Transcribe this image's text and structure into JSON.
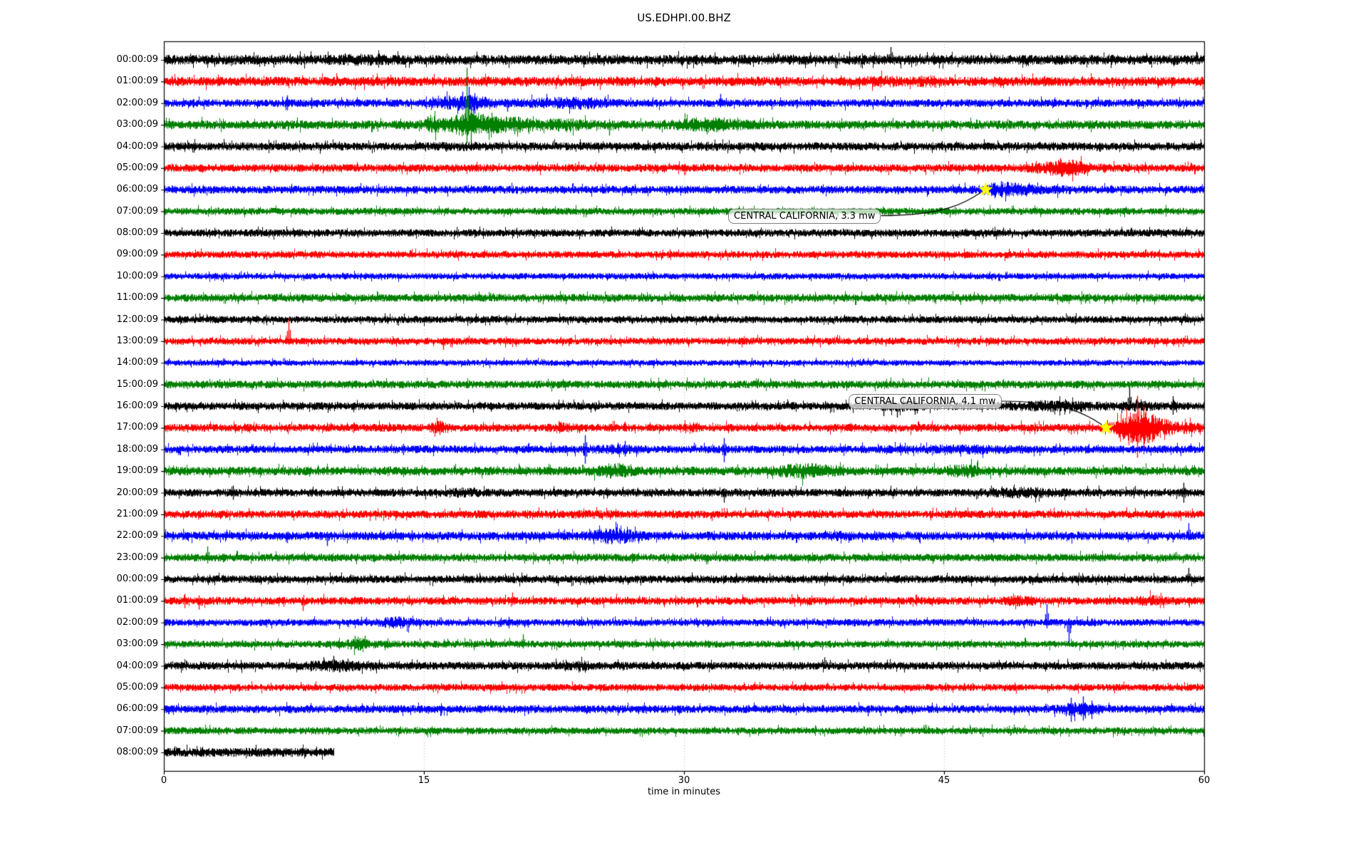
{
  "chart_data": {
    "type": "seismogram-dayplot",
    "title": "US.EDHPI.00.BHZ",
    "xlabel": "time in minutes",
    "x_ticks": [
      "0",
      "15",
      "30",
      "45",
      "60"
    ],
    "x_tick_values": [
      0,
      15,
      30,
      45,
      60
    ],
    "x_range_minutes": [
      0,
      60
    ],
    "minutes_per_row": 60,
    "grid": "vertical-dotted",
    "gridline_color": "#b4b4b4",
    "frame_color": "#000000",
    "marker_color": "#ffff00",
    "trace_color_cycle": [
      "#000000",
      "#ff0000",
      "#0000ff",
      "#008000"
    ],
    "rows": [
      {
        "label": "00:00:09",
        "color": "#000000",
        "amp": 5.0,
        "events": [
          [
            11.5,
            1.5,
            0.25
          ]
        ],
        "spikes": [
          [
            5.8,
            4,
            9
          ],
          [
            41.9,
            18,
            4
          ]
        ]
      },
      {
        "label": "01:00:09",
        "color": "#ff0000",
        "amp": 4.8,
        "events": [
          [
            41.5,
            1.0,
            0.35
          ],
          [
            44,
            0.8,
            0.3
          ]
        ],
        "spikes": [
          [
            39.6,
            3,
            10
          ]
        ]
      },
      {
        "label": "02:00:09",
        "color": "#0000ff",
        "amp": 4.0,
        "events": [
          [
            17.3,
            1.5,
            1.1
          ],
          [
            22.8,
            2.0,
            0.55
          ],
          [
            24.5,
            1.0,
            0.4
          ]
        ],
        "spikes": [
          [
            7.1,
            11,
            10
          ],
          [
            8.5,
            8,
            8
          ],
          [
            15.5,
            9,
            7
          ],
          [
            16.2,
            10,
            8
          ],
          [
            17.2,
            16,
            10
          ],
          [
            17.6,
            23,
            13
          ],
          [
            17.9,
            14,
            15
          ],
          [
            19.8,
            6,
            12
          ],
          [
            32.1,
            13,
            6
          ]
        ]
      },
      {
        "label": "03:00:09",
        "color": "#008000",
        "amp": 4.5,
        "events": [
          [
            15.6,
            0.5,
            0.9
          ],
          [
            17.5,
            1.1,
            1.5
          ],
          [
            19.6,
            2.2,
            0.9
          ],
          [
            23.2,
            1.2,
            0.5
          ],
          [
            31.5,
            1.8,
            0.8
          ]
        ],
        "spikes": [
          [
            15.2,
            12,
            6
          ],
          [
            17.45,
            80,
            26
          ],
          [
            17.7,
            30,
            20
          ],
          [
            18.9,
            17,
            10
          ],
          [
            20.2,
            10,
            13
          ],
          [
            25.7,
            6,
            15
          ]
        ]
      },
      {
        "label": "04:00:09",
        "color": "#000000",
        "amp": 4.2,
        "events": [
          [
            17,
            1,
            0.2
          ],
          [
            31,
            1,
            0.15
          ]
        ],
        "spikes": []
      },
      {
        "label": "05:00:09",
        "color": "#ff0000",
        "amp": 4.0,
        "events": [
          [
            51.9,
            1.5,
            1.2
          ]
        ],
        "spikes": [
          [
            51.7,
            14,
            8
          ],
          [
            52.4,
            12,
            10
          ]
        ]
      },
      {
        "label": "06:00:09",
        "color": "#0000ff",
        "amp": 4.0,
        "events": [
          [
            48.4,
            1.2,
            0.9
          ],
          [
            50.5,
            2,
            0.25
          ]
        ],
        "spikes": [
          [
            47.9,
            10,
            12
          ],
          [
            48.3,
            12,
            8
          ]
        ]
      },
      {
        "label": "07:00:09",
        "color": "#008000",
        "amp": 3.6,
        "events": [],
        "spikes": []
      },
      {
        "label": "08:00:09",
        "color": "#000000",
        "amp": 3.8,
        "events": [],
        "spikes": []
      },
      {
        "label": "09:00:09",
        "color": "#ff0000",
        "amp": 3.6,
        "events": [],
        "spikes": []
      },
      {
        "label": "10:00:09",
        "color": "#0000ff",
        "amp": 3.2,
        "events": [],
        "spikes": []
      },
      {
        "label": "11:00:09",
        "color": "#008000",
        "amp": 4.0,
        "events": [],
        "spikes": []
      },
      {
        "label": "12:00:09",
        "color": "#000000",
        "amp": 3.6,
        "events": [],
        "spikes": []
      },
      {
        "label": "13:00:09",
        "color": "#ff0000",
        "amp": 3.6,
        "events": [],
        "spikes": [
          [
            7.2,
            32,
            5
          ],
          [
            16.1,
            3,
            12
          ]
        ]
      },
      {
        "label": "14:00:09",
        "color": "#0000ff",
        "amp": 3.0,
        "events": [],
        "spikes": []
      },
      {
        "label": "15:00:09",
        "color": "#008000",
        "amp": 4.0,
        "events": [],
        "spikes": []
      },
      {
        "label": "16:00:09",
        "color": "#000000",
        "amp": 4.0,
        "events": [
          [
            42.4,
            1.2,
            0.5
          ],
          [
            51.5,
            2.5,
            0.5
          ],
          [
            56.2,
            0.8,
            0.5
          ]
        ],
        "spikes": [
          [
            41.5,
            4,
            14
          ],
          [
            42.3,
            4,
            16
          ],
          [
            43.3,
            4,
            12
          ],
          [
            55.7,
            26,
            6
          ],
          [
            58.2,
            14,
            12
          ]
        ]
      },
      {
        "label": "17:00:09",
        "color": "#ff0000",
        "amp": 4.0,
        "events": [
          [
            15.9,
            0.5,
            0.8
          ],
          [
            23,
            0.6,
            0.5
          ],
          [
            30.6,
            0.4,
            0.4
          ],
          [
            56.3,
            1.2,
            3.5
          ],
          [
            58.3,
            1.8,
            0.6
          ]
        ],
        "spikes": [
          [
            15.9,
            10,
            10
          ],
          [
            55.9,
            20,
            18
          ],
          [
            56.15,
            45,
            42
          ],
          [
            56.5,
            30,
            28
          ],
          [
            57,
            18,
            20
          ]
        ]
      },
      {
        "label": "18:00:09",
        "color": "#0000ff",
        "amp": 4.0,
        "events": [
          [
            26,
            1,
            0.4
          ],
          [
            46,
            3,
            0.3
          ]
        ],
        "spikes": [
          [
            13.8,
            8,
            8
          ],
          [
            24.3,
            20,
            20
          ],
          [
            26.6,
            12,
            10
          ],
          [
            32.3,
            16,
            18
          ]
        ]
      },
      {
        "label": "19:00:09",
        "color": "#008000",
        "amp": 4.4,
        "events": [
          [
            26,
            1,
            0.9
          ],
          [
            37,
            1.6,
            0.9
          ],
          [
            46.3,
            1,
            0.7
          ]
        ],
        "spikes": []
      },
      {
        "label": "20:00:09",
        "color": "#000000",
        "amp": 4.0,
        "events": [
          [
            17.2,
            0.8,
            0.4
          ],
          [
            49.5,
            2,
            0.5
          ]
        ],
        "spikes": [
          [
            4,
            10,
            10
          ],
          [
            32.3,
            6,
            14
          ],
          [
            58.8,
            14,
            14
          ]
        ]
      },
      {
        "label": "21:00:09",
        "color": "#ff0000",
        "amp": 4.0,
        "events": [
          [
            24.5,
            1,
            0.2
          ]
        ],
        "spikes": []
      },
      {
        "label": "22:00:09",
        "color": "#0000ff",
        "amp": 4.4,
        "events": [
          [
            26,
            1.2,
            1.0
          ],
          [
            39,
            0.6,
            0.3
          ]
        ],
        "spikes": [
          [
            7.1,
            6,
            10
          ],
          [
            9.4,
            6,
            14
          ],
          [
            12.5,
            8,
            6
          ],
          [
            14.3,
            8,
            8
          ],
          [
            59.1,
            18,
            6
          ]
        ]
      },
      {
        "label": "23:00:09",
        "color": "#008000",
        "amp": 4.0,
        "events": [],
        "spikes": [
          [
            2.5,
            16,
            8
          ]
        ]
      },
      {
        "label": "00:00:09",
        "color": "#000000",
        "amp": 4.0,
        "events": [],
        "spikes": [
          [
            59.1,
            16,
            4
          ]
        ]
      },
      {
        "label": "01:00:09",
        "color": "#ff0000",
        "amp": 4.0,
        "events": [
          [
            49.4,
            0.8,
            0.5
          ],
          [
            57,
            1,
            0.5
          ]
        ],
        "spikes": [
          [
            1.2,
            10,
            10
          ],
          [
            2.0,
            8,
            12
          ],
          [
            8.0,
            4,
            14
          ],
          [
            20.1,
            12,
            6
          ]
        ]
      },
      {
        "label": "02:00:09",
        "color": "#0000ff",
        "amp": 3.6,
        "events": [
          [
            13.5,
            1,
            0.8
          ]
        ],
        "spikes": [
          [
            19.9,
            8,
            8
          ],
          [
            50.9,
            26,
            8
          ],
          [
            52.2,
            6,
            30
          ]
        ]
      },
      {
        "label": "03:00:09",
        "color": "#008000",
        "amp": 3.6,
        "events": [
          [
            11.2,
            0.8,
            0.8
          ]
        ],
        "spikes": [
          [
            11,
            12,
            6
          ],
          [
            11.6,
            12,
            6
          ],
          [
            20.7,
            14,
            6
          ]
        ]
      },
      {
        "label": "04:00:09",
        "color": "#000000",
        "amp": 4.0,
        "events": [
          [
            10,
            1.5,
            0.7
          ],
          [
            23.9,
            0.8,
            0.5
          ]
        ],
        "spikes": [
          [
            9.2,
            12,
            4
          ],
          [
            9.8,
            14,
            6
          ],
          [
            10.6,
            10,
            6
          ],
          [
            38.1,
            12,
            4
          ]
        ]
      },
      {
        "label": "05:00:09",
        "color": "#ff0000",
        "amp": 3.6,
        "events": [],
        "spikes": []
      },
      {
        "label": "06:00:09",
        "color": "#0000ff",
        "amp": 4.0,
        "events": [
          [
            52.8,
            1,
            1.0
          ]
        ],
        "spikes": [
          [
            40.6,
            4,
            10
          ],
          [
            52.3,
            16,
            18
          ],
          [
            53,
            18,
            16
          ],
          [
            53.5,
            12,
            14
          ]
        ]
      },
      {
        "label": "07:00:09",
        "color": "#008000",
        "amp": 3.6,
        "events": [],
        "spikes": []
      },
      {
        "label": "08:00:09",
        "color": "#000000",
        "amp": 4.6,
        "end_min": 9.8,
        "events": [],
        "spikes": []
      }
    ],
    "annotations": [
      {
        "text": "CENTRAL CALIFORNIA, 3.3 mw",
        "box_left_min": 32.55,
        "box_row": 7,
        "box_dy": 6,
        "star_min": 47.4,
        "star_row": 6
      },
      {
        "text": "CENTRAL CALIFORNIA, 4.1 mw",
        "box_left_min": 39.5,
        "box_row": 16,
        "box_dy": -7,
        "star_min": 54.35,
        "star_row": 17
      }
    ]
  }
}
